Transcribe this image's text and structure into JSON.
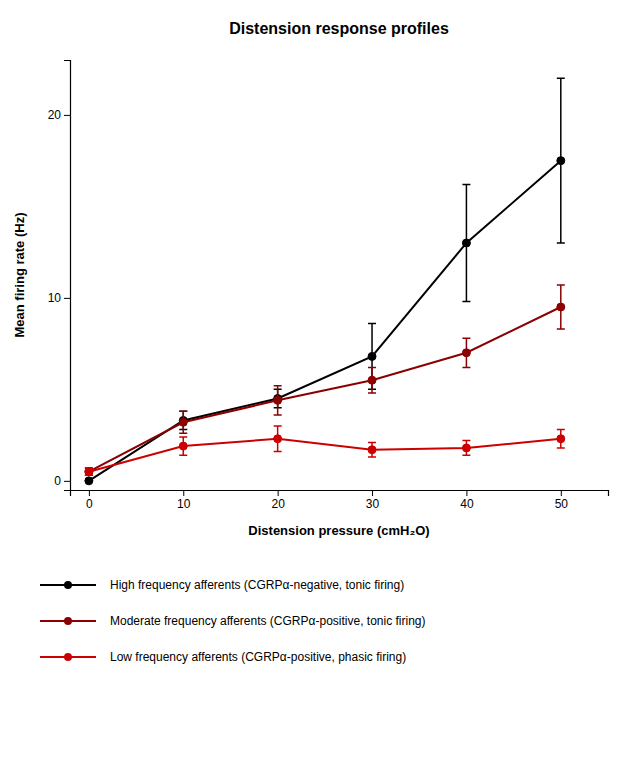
{
  "chart_data": {
    "type": "line",
    "title": "Distension response profiles",
    "xlabel": "Distension pressure (cmH₂O)",
    "ylabel": "Mean firing rate (Hz)",
    "x": [
      0,
      10,
      20,
      30,
      40,
      50
    ],
    "series": [
      {
        "name": "High frequency afferents (CGRPα-negative, tonic firing)",
        "color": "#000000",
        "values": [
          0,
          3.3,
          4.5,
          6.8,
          13.0,
          17.5
        ],
        "errors": [
          0,
          0.5,
          0.5,
          1.8,
          3.2,
          4.5
        ]
      },
      {
        "name": "Moderate frequency afferents (CGRPα-positive, tonic firing)",
        "color": "#8B0000",
        "values": [
          0.5,
          3.2,
          4.4,
          5.5,
          7.0,
          9.5
        ],
        "errors": [
          0.2,
          0.6,
          0.8,
          0.7,
          0.8,
          1.2
        ]
      },
      {
        "name": "Low frequency afferents (CGRPα-positive, phasic firing)",
        "color": "#CC0000",
        "values": [
          0.5,
          1.9,
          2.3,
          1.7,
          1.8,
          2.3
        ],
        "errors": [
          0.2,
          0.5,
          0.7,
          0.4,
          0.4,
          0.5
        ]
      }
    ],
    "xlim": [
      -2,
      55
    ],
    "xticks": [
      0,
      10,
      20,
      30,
      40,
      50
    ],
    "ylim": [
      -0.5,
      23
    ],
    "yticks": [
      0,
      10,
      20
    ],
    "marker": "circle",
    "legend": "bottom",
    "grid": false
  }
}
